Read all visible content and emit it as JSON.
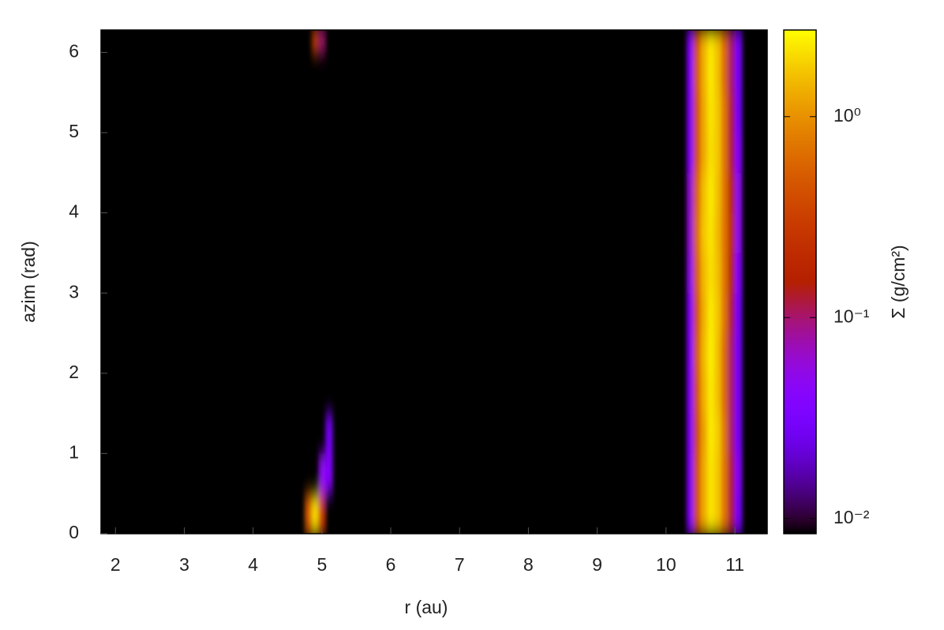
{
  "chart_data": {
    "type": "heatmap",
    "xlabel": "r (au)",
    "ylabel": "azim (rad)",
    "zlabel": "Σ (g/cm²)",
    "x_edges": [
      1.79,
      4.75,
      4.85,
      4.95,
      5.05,
      5.15,
      10.3,
      10.4,
      10.5,
      10.6,
      10.7,
      10.8,
      10.9,
      11.0,
      11.1,
      11.47
    ],
    "y_edges": [
      0,
      0.5,
      1.0,
      1.5,
      2.0,
      2.5,
      3.0,
      3.5,
      4.0,
      4.5,
      5.0,
      5.5,
      6.0,
      6.28
    ],
    "z": [
      [
        null,
        0.5,
        2.0,
        0.3,
        null,
        null,
        0.04,
        0.4,
        1.3,
        2.2,
        1.7,
        0.7,
        0.12,
        0.03,
        null
      ],
      [
        null,
        null,
        null,
        0.05,
        0.04,
        null,
        0.04,
        0.4,
        1.3,
        2.2,
        1.7,
        0.7,
        0.12,
        0.04,
        null
      ],
      [
        null,
        null,
        null,
        null,
        0.03,
        null,
        0.04,
        0.35,
        1.2,
        2.3,
        1.8,
        0.7,
        0.1,
        0.03,
        null
      ],
      [
        null,
        null,
        null,
        null,
        null,
        null,
        0.04,
        0.4,
        1.4,
        2.3,
        1.6,
        0.6,
        0.1,
        0.03,
        null
      ],
      [
        null,
        null,
        null,
        null,
        null,
        null,
        0.04,
        0.45,
        1.5,
        2.4,
        1.6,
        0.6,
        0.1,
        0.03,
        null
      ],
      [
        null,
        null,
        null,
        null,
        null,
        null,
        0.04,
        0.4,
        1.4,
        2.3,
        1.7,
        0.7,
        0.12,
        0.03,
        null
      ],
      [
        null,
        null,
        null,
        null,
        null,
        null,
        0.05,
        0.5,
        1.5,
        2.1,
        1.6,
        0.7,
        0.15,
        0.04,
        null
      ],
      [
        null,
        null,
        null,
        null,
        null,
        null,
        0.06,
        0.6,
        1.7,
        2.2,
        1.5,
        0.7,
        0.18,
        0.05,
        null
      ],
      [
        null,
        null,
        null,
        null,
        null,
        null,
        0.06,
        0.55,
        1.6,
        2.3,
        1.6,
        0.7,
        0.16,
        0.05,
        null
      ],
      [
        null,
        null,
        null,
        null,
        null,
        null,
        0.04,
        0.4,
        1.3,
        2.1,
        1.7,
        0.7,
        0.12,
        0.04,
        null
      ],
      [
        null,
        null,
        null,
        null,
        null,
        null,
        0.04,
        0.4,
        1.3,
        2.2,
        1.7,
        0.7,
        0.12,
        0.03,
        null
      ],
      [
        null,
        null,
        null,
        null,
        null,
        null,
        0.04,
        0.45,
        1.4,
        2.3,
        1.6,
        0.6,
        0.1,
        0.03,
        null
      ],
      [
        null,
        null,
        0.3,
        0.1,
        null,
        null,
        0.04,
        0.4,
        1.4,
        2.2,
        1.6,
        0.6,
        0.1,
        0.03,
        null
      ]
    ],
    "xlim": [
      1.79,
      11.47
    ],
    "ylim": [
      0,
      6.28
    ],
    "xticks": [
      2,
      3,
      4,
      5,
      6,
      7,
      8,
      9,
      10,
      11
    ],
    "yticks": [
      0,
      1,
      2,
      3,
      4,
      5,
      6
    ],
    "zlim": [
      0.0084,
      2.7
    ],
    "zscale": "log",
    "zticks": [
      {
        "value": 0.01,
        "label": "10⁻²"
      },
      {
        "value": 0.1,
        "label": "10⁻¹"
      },
      {
        "value": 1,
        "label": "10⁰"
      }
    ]
  }
}
